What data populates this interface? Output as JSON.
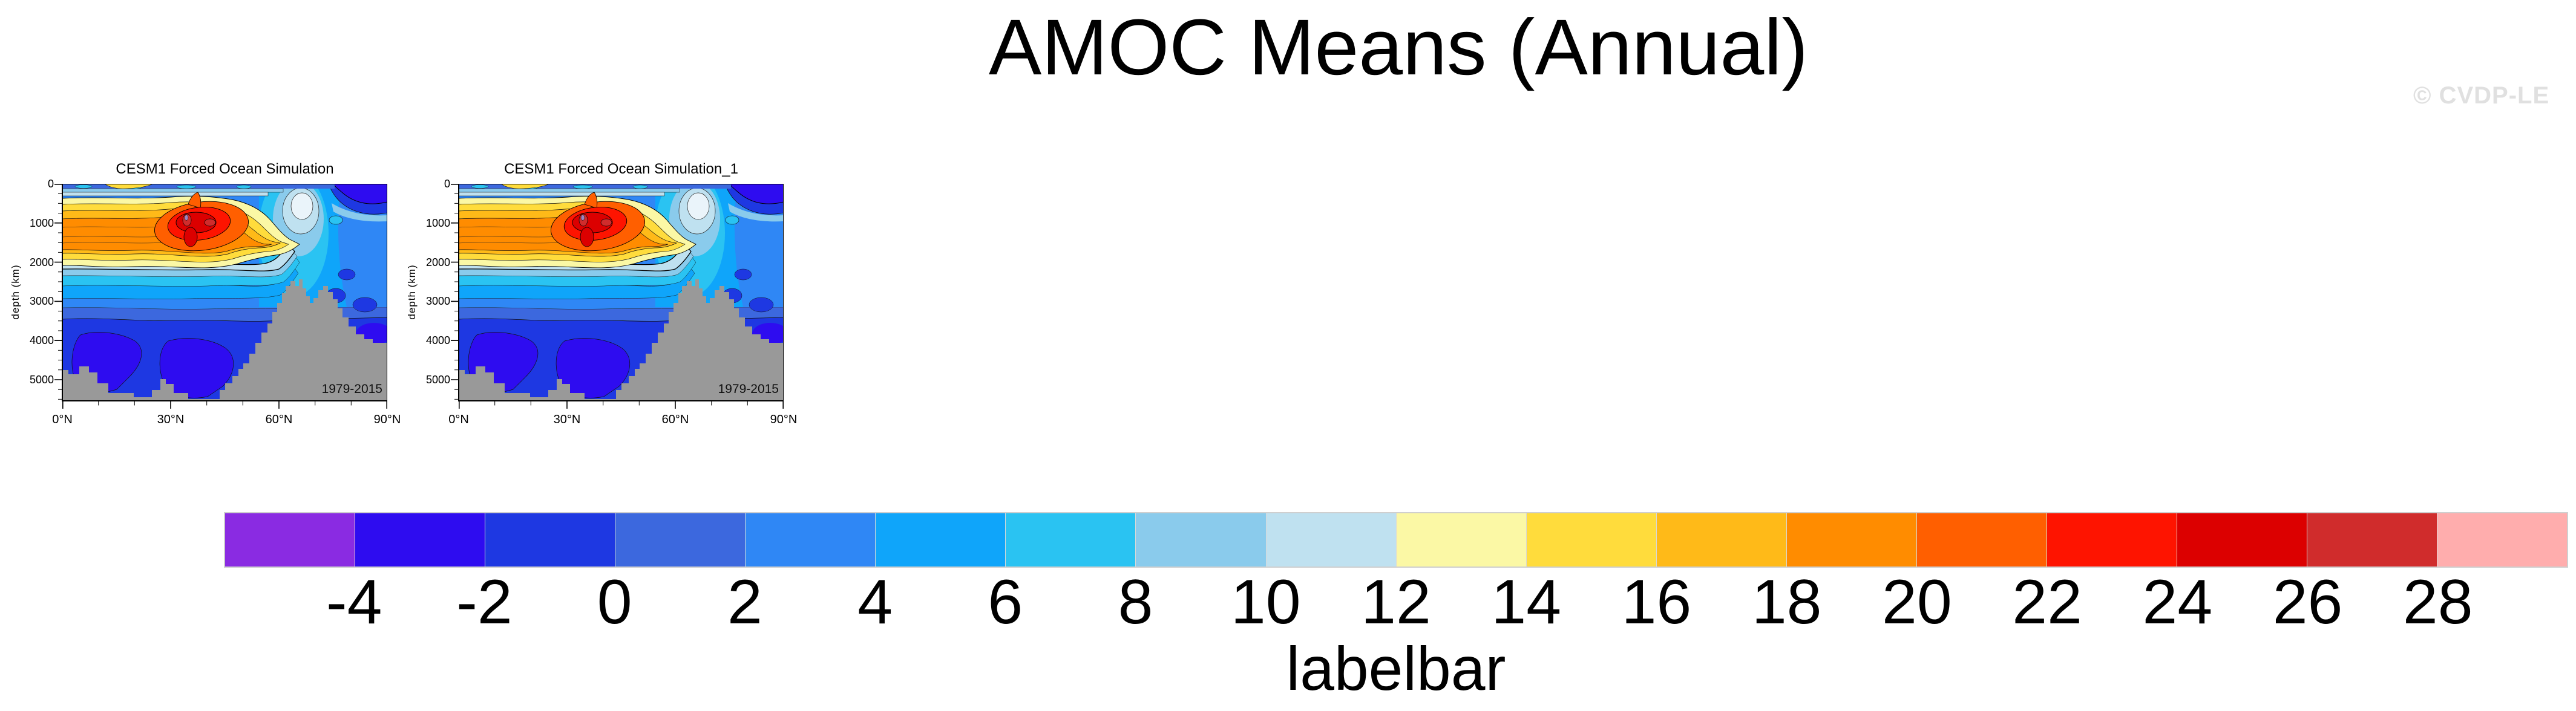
{
  "page": {
    "title": "AMOC Means (Annual)",
    "watermark": "© CVDP-LE",
    "background": "#FFFFFF"
  },
  "panels": [
    {
      "title": "CESM1 Forced Ocean Simulation",
      "period": "1979-2015"
    },
    {
      "title": "CESM1 Forced Ocean Simulation_1",
      "period": "1979-2015"
    }
  ],
  "plot": {
    "ylabel": "depth (km)",
    "y_tick_labels": [
      "0",
      "1000",
      "2000",
      "3000",
      "4000",
      "5000"
    ],
    "x_tick_labels": [
      "0°N",
      "30°N",
      "60°N",
      "90°N"
    ],
    "seafloor_color": "#999999"
  },
  "labelbar": {
    "caption": "labelbar",
    "tick_labels": [
      "-4",
      "-2",
      "0",
      "2",
      "4",
      "6",
      "8",
      "10",
      "12",
      "14",
      "16",
      "18",
      "20",
      "22",
      "24",
      "26",
      "28"
    ],
    "colors": [
      "#8A2BE2",
      "#2E0CF0",
      "#1E38E2",
      "#3C68DE",
      "#2F87F5",
      "#0FA5FA",
      "#2AC3F2",
      "#8ACBEC",
      "#BFE1F0",
      "#FBF8A5",
      "#FFDC3C",
      "#FFBA18",
      "#FF8C00",
      "#FF5F00",
      "#FE1400",
      "#DC0000",
      "#D02C2C",
      "#FFADAD"
    ],
    "border_color": "#CFCFCF"
  },
  "chart_data": {
    "type": "contour",
    "title": "AMOC Means (Annual)",
    "panels": [
      {
        "title": "CESM1 Forced Ocean Simulation",
        "period": "1979-2015"
      },
      {
        "title": "CESM1 Forced Ocean Simulation_1",
        "period": "1979-2015"
      }
    ],
    "xlabel": "",
    "ylabel": "depth (km)",
    "x_tick_labels": [
      "0°N",
      "30°N",
      "60°N",
      "90°N"
    ],
    "x_range_deg_north": [
      0,
      90
    ],
    "y_tick_labels": [
      0,
      1000,
      2000,
      3000,
      4000,
      5000
    ],
    "y_range_depth": [
      0,
      5600
    ],
    "y_axis_reversed": true,
    "grid": false,
    "contour_levels": [
      -4,
      -2,
      0,
      2,
      4,
      6,
      8,
      10,
      12,
      14,
      16,
      18,
      20,
      22,
      24,
      26,
      28
    ],
    "palette": [
      "#8A2BE2",
      "#2E0CF0",
      "#1E38E2",
      "#3C68DE",
      "#2F87F5",
      "#0FA5FA",
      "#2AC3F2",
      "#8ACBEC",
      "#BFE1F0",
      "#FBF8A5",
      "#FFDC3C",
      "#FFBA18",
      "#FF8C00",
      "#FF5F00",
      "#FE1400",
      "#DC0000",
      "#D02C2C",
      "#FFADAD"
    ],
    "legend_position": "bottom labelbar, caption 'labelbar'",
    "features": {
      "maximum_cell": {
        "approx_value": "24-28",
        "latitude_deg_north": "33-42",
        "depth": "800-1400"
      },
      "broad_positive_cell": {
        "approx_value": "12-20",
        "latitude_deg_north": "0-55",
        "depth": "300-2000"
      },
      "weak_values_at_depth": {
        "approx_value": "0-6",
        "depth": "2500-5500"
      },
      "near_surface_northern_minimum": {
        "approx_value": "-4-0",
        "latitude_deg_north": "75-90",
        "depth": "0-500"
      },
      "pale_minimum_pocket": {
        "approx_value": "8-12",
        "latitude_deg_north": "55-67",
        "depth": "300-900"
      },
      "seafloor_mask": "gray bathymetry along bottom, rising to ~2500 depth near 60-70°N",
      "panels_identical": true
    }
  }
}
